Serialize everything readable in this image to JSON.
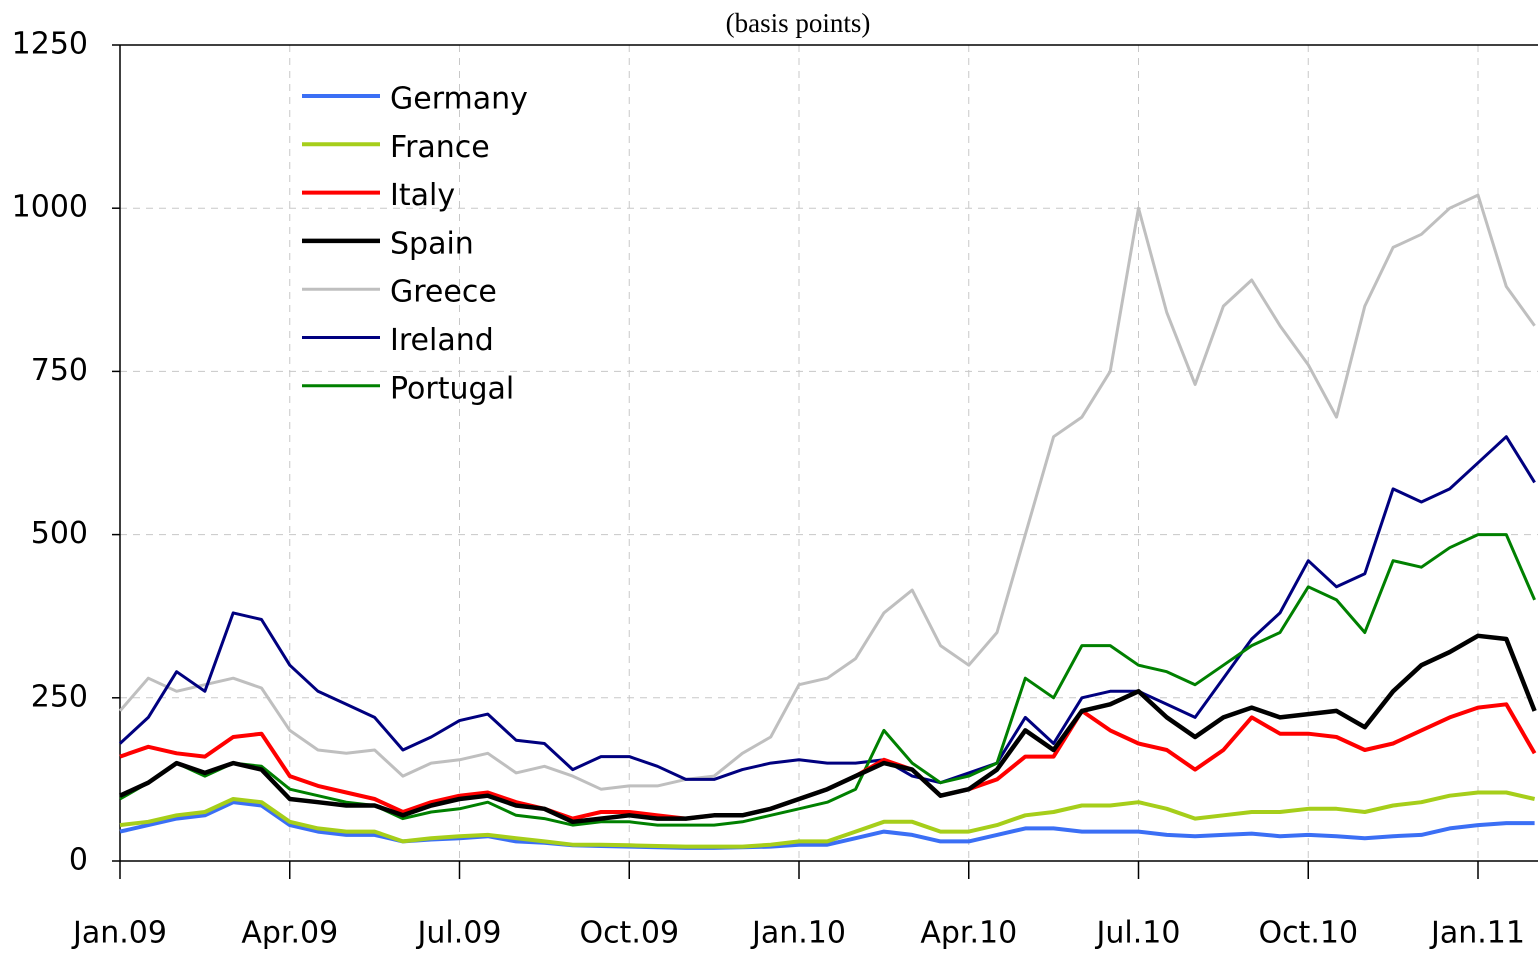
{
  "chart_data": {
    "type": "line",
    "title": "(basis points)",
    "categories": [
      "Jan.09",
      null,
      null,
      null,
      null,
      null,
      "Apr.09",
      null,
      null,
      null,
      null,
      null,
      "Jul.09",
      null,
      null,
      null,
      null,
      null,
      "Oct.09",
      null,
      null,
      null,
      null,
      null,
      "Jan.10",
      null,
      null,
      null,
      null,
      null,
      "Apr.10",
      null,
      null,
      null,
      null,
      null,
      "Jul.10",
      null,
      null,
      null,
      null,
      null,
      "Oct.10",
      null,
      null,
      null,
      null,
      null,
      "Jan.11",
      null,
      null
    ],
    "series": [
      {
        "name": "Germany",
        "color": "#3b6ff5",
        "values": [
          45,
          55,
          65,
          70,
          90,
          85,
          55,
          45,
          40,
          40,
          30,
          33,
          35,
          38,
          30,
          28,
          24,
          23,
          22,
          21,
          20,
          20,
          21,
          22,
          25,
          25,
          35,
          45,
          40,
          30,
          30,
          40,
          50,
          50,
          45,
          45,
          45,
          40,
          38,
          40,
          42,
          38,
          40,
          38,
          35,
          38,
          40,
          50,
          55,
          58,
          58
        ]
      },
      {
        "name": "France",
        "color": "#a6ce1a",
        "values": [
          55,
          60,
          70,
          75,
          95,
          90,
          60,
          50,
          45,
          45,
          30,
          35,
          38,
          40,
          35,
          30,
          25,
          25,
          24,
          23,
          22,
          22,
          22,
          25,
          30,
          30,
          45,
          60,
          60,
          45,
          45,
          55,
          70,
          75,
          85,
          85,
          90,
          80,
          65,
          70,
          75,
          75,
          80,
          80,
          75,
          85,
          90,
          100,
          105,
          105,
          95
        ]
      },
      {
        "name": "Italy",
        "color": "#ff0000",
        "values": [
          160,
          175,
          165,
          160,
          190,
          195,
          130,
          115,
          105,
          95,
          75,
          90,
          100,
          105,
          90,
          80,
          65,
          75,
          75,
          70,
          65,
          70,
          70,
          80,
          95,
          110,
          130,
          155,
          140,
          100,
          110,
          125,
          160,
          160,
          230,
          200,
          180,
          170,
          140,
          170,
          220,
          195,
          195,
          190,
          170,
          180,
          200,
          220,
          235,
          240,
          165
        ]
      },
      {
        "name": "Spain",
        "color": "#000000",
        "values": [
          100,
          120,
          150,
          135,
          150,
          140,
          95,
          90,
          85,
          85,
          70,
          85,
          95,
          100,
          85,
          80,
          60,
          65,
          70,
          65,
          65,
          70,
          70,
          80,
          95,
          110,
          130,
          150,
          140,
          100,
          110,
          140,
          200,
          170,
          230,
          240,
          260,
          220,
          190,
          220,
          235,
          220,
          225,
          230,
          205,
          260,
          300,
          320,
          345,
          340,
          230
        ]
      },
      {
        "name": "Greece",
        "color": "#bfbfbf",
        "values": [
          230,
          280,
          260,
          270,
          280,
          265,
          200,
          170,
          165,
          170,
          130,
          150,
          155,
          165,
          135,
          145,
          130,
          110,
          115,
          115,
          125,
          130,
          165,
          190,
          270,
          280,
          310,
          380,
          415,
          330,
          300,
          350,
          500,
          650,
          680,
          750,
          1000,
          840,
          730,
          850,
          890,
          820,
          760,
          680,
          850,
          940,
          960,
          1000,
          1020,
          880,
          820
        ]
      },
      {
        "name": "Ireland",
        "color": "#00007f",
        "values": [
          180,
          220,
          290,
          260,
          380,
          370,
          300,
          260,
          240,
          220,
          170,
          190,
          215,
          225,
          185,
          180,
          140,
          160,
          160,
          145,
          125,
          125,
          140,
          150,
          155,
          150,
          150,
          155,
          130,
          120,
          135,
          150,
          220,
          180,
          250,
          260,
          260,
          240,
          220,
          280,
          340,
          380,
          460,
          420,
          440,
          570,
          550,
          570,
          610,
          650,
          580
        ]
      },
      {
        "name": "Portugal",
        "color": "#008000",
        "values": [
          95,
          120,
          150,
          130,
          150,
          145,
          110,
          100,
          90,
          85,
          65,
          75,
          80,
          90,
          70,
          65,
          55,
          60,
          60,
          55,
          55,
          55,
          60,
          70,
          80,
          90,
          110,
          200,
          150,
          120,
          130,
          150,
          280,
          250,
          330,
          330,
          300,
          290,
          270,
          300,
          330,
          350,
          420,
          400,
          350,
          460,
          450,
          480,
          500,
          500,
          400
        ]
      }
    ],
    "ylim": [
      0,
      1250
    ],
    "yticks": [
      0,
      250,
      500,
      750,
      1000,
      1250
    ],
    "grid": true,
    "legend": "upper left"
  }
}
